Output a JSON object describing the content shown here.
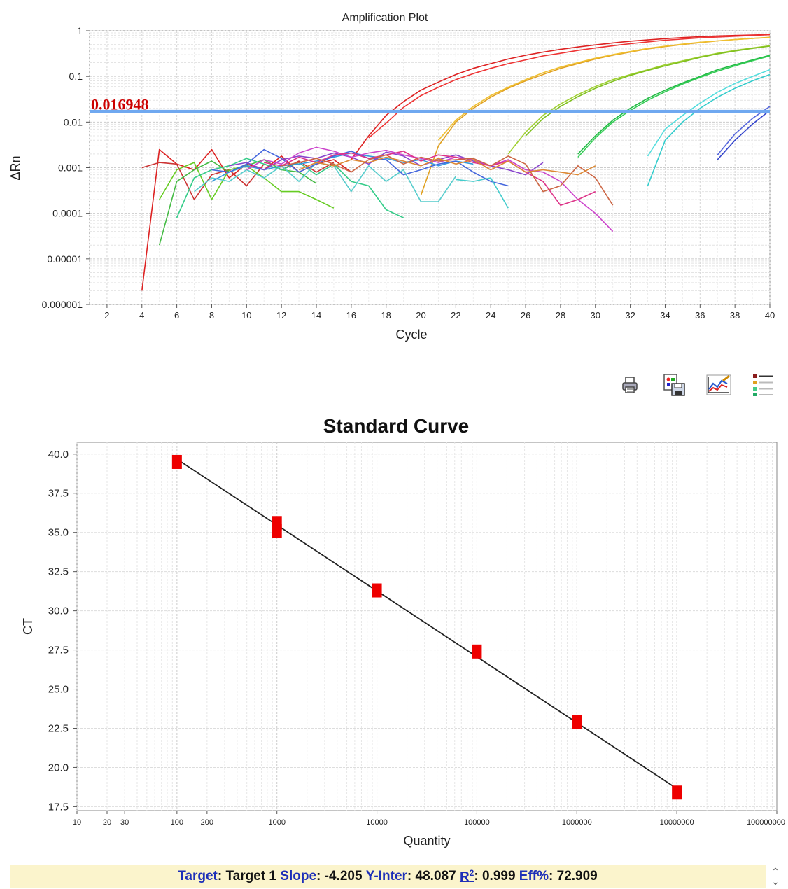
{
  "chart_data": [
    {
      "type": "line",
      "title": "Amplification Plot",
      "xlabel": "Cycle",
      "ylabel": "ΔRn",
      "xlim": [
        1,
        40
      ],
      "ylim": [
        1e-06,
        1
      ],
      "y_scale": "log",
      "x_ticks": [
        2,
        4,
        6,
        8,
        10,
        12,
        14,
        16,
        18,
        20,
        22,
        24,
        26,
        28,
        30,
        32,
        34,
        36,
        38,
        40
      ],
      "y_ticks": [
        {
          "value": 1,
          "label": "1"
        },
        {
          "value": 0.1,
          "label": "0.1"
        },
        {
          "value": 0.01,
          "label": "0.01"
        },
        {
          "value": 0.001,
          "label": "0.001"
        },
        {
          "value": 0.0001,
          "label": "0.0001"
        },
        {
          "value": 1e-05,
          "label": "0.00001"
        },
        {
          "value": 1e-06,
          "label": "0.000001"
        }
      ],
      "grid": true,
      "threshold": {
        "value": 0.016948,
        "label": "0.016948",
        "color": "#6fa8f0",
        "label_color": "#cc0000"
      },
      "series": [
        {
          "color": "#dd2222",
          "x": [
            4,
            5,
            6,
            7,
            8,
            9,
            10,
            11,
            12,
            13,
            14,
            15,
            16
          ],
          "y": [
            2e-06,
            0.0025,
            0.0012,
            0.0009,
            0.0025,
            0.0006,
            0.0012,
            0.0009,
            0.0018,
            0.0008,
            0.0012,
            0.0015,
            0.0008
          ]
        },
        {
          "color": "#cc3333",
          "x": [
            4,
            5,
            6,
            7,
            8,
            9,
            10,
            11,
            12,
            13,
            14,
            15
          ],
          "y": [
            0.001,
            0.0013,
            0.0012,
            0.0002,
            0.0007,
            0.0009,
            0.0004,
            0.0012,
            0.0009,
            0.0014,
            0.0008,
            0.0013
          ]
        },
        {
          "color": "#dd2222",
          "x": [
            16,
            17,
            18,
            19,
            20,
            21,
            22,
            23,
            24,
            25,
            26,
            27,
            28,
            29,
            30,
            31,
            32,
            33,
            34,
            35,
            36,
            37,
            38,
            39,
            40
          ],
          "y": [
            0.0015,
            0.005,
            0.014,
            0.028,
            0.05,
            0.075,
            0.11,
            0.15,
            0.19,
            0.24,
            0.29,
            0.34,
            0.39,
            0.44,
            0.49,
            0.54,
            0.59,
            0.63,
            0.67,
            0.71,
            0.74,
            0.77,
            0.79,
            0.81,
            0.83
          ]
        },
        {
          "color": "#ee3333",
          "x": [
            17,
            18,
            19,
            20,
            21,
            22,
            23,
            24,
            25,
            26,
            27,
            28,
            29,
            30,
            31,
            32,
            33,
            34,
            35,
            36,
            37,
            38,
            39,
            40
          ],
          "y": [
            0.0045,
            0.0095,
            0.021,
            0.038,
            0.058,
            0.085,
            0.115,
            0.15,
            0.19,
            0.23,
            0.28,
            0.32,
            0.37,
            0.42,
            0.47,
            0.52,
            0.57,
            0.62,
            0.66,
            0.7,
            0.73,
            0.76,
            0.79,
            0.82
          ]
        },
        {
          "color": "#e0a020",
          "x": [
            20,
            21,
            22,
            23,
            24,
            25,
            26,
            27,
            28,
            29,
            30,
            31,
            32,
            33,
            34,
            35,
            36,
            37,
            38,
            39,
            40
          ],
          "y": [
            0.00025,
            0.003,
            0.01,
            0.02,
            0.035,
            0.055,
            0.08,
            0.11,
            0.15,
            0.19,
            0.24,
            0.29,
            0.34,
            0.4,
            0.45,
            0.5,
            0.55,
            0.6,
            0.64,
            0.68,
            0.72
          ]
        },
        {
          "color": "#f0c030",
          "x": [
            21,
            22,
            23,
            24,
            25,
            26,
            27,
            28,
            29,
            30,
            31,
            32,
            33,
            34,
            35,
            36,
            37,
            38,
            39,
            40
          ],
          "y": [
            0.004,
            0.011,
            0.022,
            0.038,
            0.058,
            0.085,
            0.12,
            0.16,
            0.2,
            0.25,
            0.3,
            0.35,
            0.41,
            0.46,
            0.51,
            0.56,
            0.6,
            0.64,
            0.68,
            0.71
          ]
        },
        {
          "color": "#a0d030",
          "x": [
            25,
            26,
            27,
            28,
            29,
            30,
            31,
            32,
            33,
            34,
            35,
            36,
            37,
            38,
            39,
            40
          ],
          "y": [
            0.002,
            0.006,
            0.014,
            0.025,
            0.04,
            0.06,
            0.085,
            0.11,
            0.14,
            0.18,
            0.22,
            0.27,
            0.32,
            0.37,
            0.42,
            0.47
          ]
        },
        {
          "color": "#80c020",
          "x": [
            26,
            27,
            28,
            29,
            30,
            31,
            32,
            33,
            34,
            35,
            36,
            37,
            38,
            39,
            40
          ],
          "y": [
            0.005,
            0.012,
            0.022,
            0.036,
            0.055,
            0.078,
            0.105,
            0.135,
            0.17,
            0.21,
            0.26,
            0.31,
            0.36,
            0.41,
            0.46
          ]
        },
        {
          "color": "#22bb44",
          "x": [
            29,
            30,
            31,
            32,
            33,
            34,
            35,
            36,
            37,
            38,
            39,
            40
          ],
          "y": [
            0.002,
            0.005,
            0.011,
            0.02,
            0.033,
            0.05,
            0.072,
            0.1,
            0.14,
            0.18,
            0.23,
            0.29
          ]
        },
        {
          "color": "#33cc55",
          "x": [
            29,
            30,
            31,
            32,
            33,
            34,
            35,
            36,
            37,
            38,
            39,
            40
          ],
          "y": [
            0.0017,
            0.0045,
            0.01,
            0.018,
            0.03,
            0.046,
            0.068,
            0.095,
            0.13,
            0.17,
            0.22,
            0.28
          ]
        },
        {
          "color": "#33cccc",
          "x": [
            33,
            34,
            35,
            36,
            37,
            38,
            39,
            40
          ],
          "y": [
            0.0004,
            0.004,
            0.01,
            0.02,
            0.035,
            0.055,
            0.08,
            0.11
          ]
        },
        {
          "color": "#55dddd",
          "x": [
            33,
            34,
            35,
            36,
            37,
            38,
            39,
            40
          ],
          "y": [
            0.0018,
            0.007,
            0.014,
            0.026,
            0.045,
            0.07,
            0.1,
            0.14
          ]
        },
        {
          "color": "#3344cc",
          "x": [
            37,
            38,
            39,
            40
          ],
          "y": [
            0.0015,
            0.004,
            0.009,
            0.018
          ]
        },
        {
          "color": "#5566dd",
          "x": [
            37,
            38,
            39,
            40
          ],
          "y": [
            0.0019,
            0.0055,
            0.012,
            0.022
          ]
        },
        {
          "color": "#66cc22",
          "x": [
            5,
            6,
            7,
            8,
            9,
            10,
            11,
            12,
            13,
            14,
            15
          ],
          "y": [
            0.0002,
            0.0009,
            0.0013,
            0.0002,
            0.0009,
            0.0011,
            0.0006,
            0.0003,
            0.0003,
            0.0002,
            0.00013
          ]
        },
        {
          "color": "#44bb44",
          "x": [
            5,
            6,
            7,
            8,
            9,
            10,
            11,
            12,
            13,
            14
          ],
          "y": [
            2e-05,
            0.0005,
            0.0009,
            0.0014,
            0.0008,
            0.0011,
            0.0015,
            0.0009,
            0.0008,
            0.00045
          ]
        },
        {
          "color": "#33cc88",
          "x": [
            6,
            7,
            8,
            9,
            10,
            11,
            12,
            13,
            14,
            15,
            16,
            17,
            18,
            19
          ],
          "y": [
            8e-05,
            0.0006,
            0.0009,
            0.0011,
            0.0016,
            0.0012,
            0.0009,
            0.0013,
            0.0007,
            0.0012,
            0.0005,
            0.0004,
            0.00012,
            8e-05
          ]
        },
        {
          "color": "#55cccc",
          "x": [
            7,
            8,
            9,
            10,
            11,
            12,
            13,
            14,
            15,
            16,
            17,
            18,
            19,
            20,
            21,
            22
          ],
          "y": [
            0.0003,
            0.0006,
            0.0005,
            0.0009,
            0.0006,
            0.0011,
            0.0005,
            0.0013,
            0.0011,
            0.0003,
            0.0011,
            0.0005,
            0.0009,
            0.00018,
            0.00018,
            0.00065
          ]
        },
        {
          "color": "#3399dd",
          "x": [
            8,
            9,
            10,
            11,
            12,
            13,
            14,
            15,
            16,
            17,
            18,
            19,
            20,
            21,
            22,
            23
          ],
          "y": [
            0.0005,
            0.0008,
            0.0011,
            0.0009,
            0.0011,
            0.0012,
            0.0014,
            0.0017,
            0.0021,
            0.0018,
            0.0016,
            0.0013,
            0.0015,
            0.0011,
            0.0014,
            0.0012
          ]
        },
        {
          "color": "#4466dd",
          "x": [
            8,
            9,
            10,
            11,
            12,
            13,
            14,
            15,
            16,
            17,
            18,
            19,
            20,
            21,
            22,
            23,
            24,
            25
          ],
          "y": [
            0.0009,
            0.0008,
            0.0012,
            0.0025,
            0.0016,
            0.0008,
            0.0012,
            0.0018,
            0.0023,
            0.0016,
            0.0015,
            0.0007,
            0.0009,
            0.0012,
            0.0014,
            0.0008,
            0.0005,
            0.0004
          ]
        },
        {
          "color": "#8844cc",
          "x": [
            9,
            10,
            11,
            12,
            13,
            14,
            15,
            16,
            17,
            18,
            19,
            20,
            21,
            22,
            23,
            24,
            25,
            26,
            27
          ],
          "y": [
            0.0011,
            0.0013,
            0.0009,
            0.0015,
            0.0018,
            0.0016,
            0.0021,
            0.0017,
            0.0012,
            0.0022,
            0.0018,
            0.0011,
            0.0015,
            0.0019,
            0.0014,
            0.0011,
            0.0009,
            0.0007,
            0.0013
          ]
        },
        {
          "color": "#cc44cc",
          "x": [
            10,
            11,
            12,
            13,
            14,
            15,
            16,
            17,
            18,
            19,
            20,
            21,
            22,
            23,
            24,
            25,
            26,
            27,
            28,
            29,
            30,
            31
          ],
          "y": [
            0.0009,
            0.0015,
            0.0012,
            0.0021,
            0.0028,
            0.0023,
            0.0017,
            0.0021,
            0.0024,
            0.0019,
            0.0016,
            0.0013,
            0.0017,
            0.0015,
            0.0011,
            0.0015,
            0.0009,
            0.0008,
            0.0005,
            0.0002,
            0.0001,
            4e-05
          ]
        },
        {
          "color": "#dd3388",
          "x": [
            11,
            12,
            13,
            14,
            15,
            16,
            17,
            18,
            19,
            20,
            21,
            22,
            23,
            24,
            25,
            26,
            27,
            28,
            29,
            30
          ],
          "y": [
            0.0013,
            0.0011,
            0.0017,
            0.0013,
            0.0019,
            0.0021,
            0.0016,
            0.0019,
            0.0023,
            0.0014,
            0.0019,
            0.0017,
            0.0013,
            0.0011,
            0.0014,
            0.0008,
            0.0005,
            0.00015,
            0.0002,
            0.0003
          ]
        },
        {
          "color": "#cc6644",
          "x": [
            12,
            13,
            14,
            15,
            16,
            17,
            18,
            19,
            20,
            21,
            22,
            23,
            24,
            25,
            26,
            27,
            28,
            29,
            30,
            31
          ],
          "y": [
            0.0011,
            0.0013,
            0.0016,
            0.0012,
            0.0008,
            0.0015,
            0.0019,
            0.0012,
            0.0017,
            0.0014,
            0.0015,
            0.0016,
            0.0011,
            0.0018,
            0.0012,
            0.0003,
            0.0004,
            0.0011,
            0.0006,
            0.00015
          ]
        },
        {
          "color": "#dd8833",
          "x": [
            13,
            14,
            15,
            16,
            17,
            18,
            19,
            20,
            21,
            22,
            23,
            24,
            25,
            26,
            27,
            28,
            29,
            30
          ],
          "y": [
            0.0009,
            0.0013,
            0.0011,
            0.0015,
            0.0013,
            0.0017,
            0.0014,
            0.0011,
            0.0016,
            0.0012,
            0.0015,
            0.0009,
            0.0014,
            0.0008,
            0.0009,
            0.0008,
            0.0007,
            0.0011
          ]
        },
        {
          "color": "#44cccc",
          "x": [
            22,
            23,
            24,
            25
          ],
          "y": [
            0.00055,
            0.0005,
            0.0006,
            0.00013
          ]
        }
      ]
    },
    {
      "type": "scatter",
      "title": "Standard Curve",
      "xlabel": "Quantity",
      "ylabel": "CT",
      "x_scale": "log",
      "xlim": [
        10,
        100000000
      ],
      "ylim": [
        17.5,
        40.0
      ],
      "x_ticks": [
        {
          "value": 10,
          "label": "10"
        },
        {
          "value": 20,
          "label": "20"
        },
        {
          "value": 30,
          "label": "30"
        },
        {
          "value": 100,
          "label": "100"
        },
        {
          "value": 200,
          "label": "200"
        },
        {
          "value": 1000,
          "label": "1000"
        },
        {
          "value": 10000,
          "label": "10000"
        },
        {
          "value": 100000,
          "label": "100000"
        },
        {
          "value": 1000000,
          "label": "1000000"
        },
        {
          "value": 10000000,
          "label": "10000000"
        },
        {
          "value": 100000000,
          "label": "100000000"
        }
      ],
      "y_ticks": [
        "17.5",
        "20.0",
        "22.5",
        "25.0",
        "27.5",
        "30.0",
        "32.5",
        "35.0",
        "37.5",
        "40.0"
      ],
      "grid": true,
      "points": [
        {
          "x": 100,
          "y": 39.5
        },
        {
          "x": 1000,
          "y": 35.6
        },
        {
          "x": 1000,
          "y": 35.1
        },
        {
          "x": 10000,
          "y": 31.3
        },
        {
          "x": 100000,
          "y": 27.4
        },
        {
          "x": 1000000,
          "y": 22.9
        },
        {
          "x": 10000000,
          "y": 18.4
        }
      ],
      "point_color": "#ee0000",
      "fit_line": {
        "slope": -4.205,
        "intercept": 48.087,
        "x_range": [
          100,
          10000000
        ],
        "color": "#222222"
      }
    }
  ],
  "toolbar": {
    "icons": [
      "printer-icon",
      "save-image-icon",
      "chart-properties-icon",
      "legend-icon"
    ]
  },
  "stats": {
    "target_label": "Target",
    "target_value": "Target 1",
    "slope_label": "Slope",
    "slope_value": "-4.205",
    "yinter_label": "Y-Inter",
    "yinter_value": "48.087",
    "r2_label": "R",
    "r2_sup": "2",
    "r2_value": "0.999",
    "eff_label": "Eff%",
    "eff_value": "72.909"
  }
}
